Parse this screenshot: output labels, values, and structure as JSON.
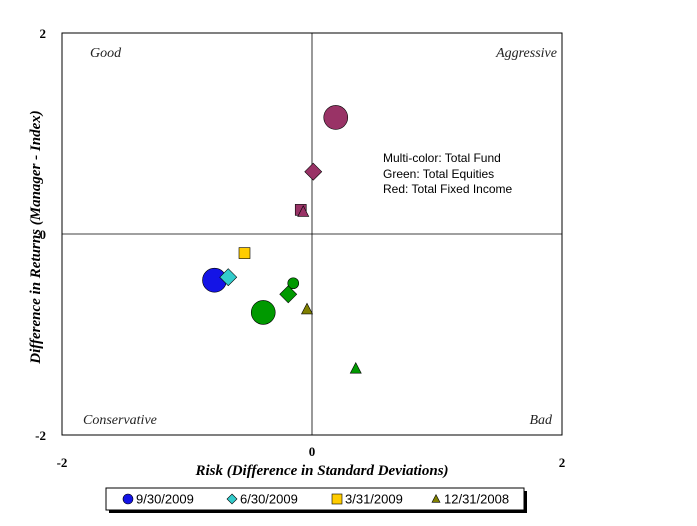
{
  "chart_data": {
    "type": "scatter",
    "xlabel": "Risk (Difference in Standard Deviations)",
    "ylabel": "Difference in Returns (Manager - Index)",
    "xlim": [
      -2,
      2
    ],
    "ylim": [
      -2,
      2
    ],
    "x_ticks": [
      "-2",
      "0",
      "2"
    ],
    "y_ticks": [
      "2",
      "0",
      "-2"
    ],
    "quadrant_labels": {
      "top_left": "Good",
      "top_right": "Aggressive",
      "bottom_left": "Conservative",
      "bottom_right": "Bad"
    },
    "annotations": [
      "Multi-color: Total Fund",
      "Green: Total Equities",
      "Red: Total Fixed Income"
    ],
    "legend_placement": "bottom",
    "grid": false,
    "series": [
      {
        "name": "9/30/2009",
        "marker": "circle"
      },
      {
        "name": "6/30/2009",
        "marker": "diamond"
      },
      {
        "name": "3/31/2009",
        "marker": "square"
      },
      {
        "name": "12/31/2008",
        "marker": "triangle"
      }
    ],
    "points": [
      {
        "group": "Total Fund",
        "series": "9/30/2009",
        "x": -0.78,
        "y": -0.46,
        "color": "#1414e6",
        "size": "large"
      },
      {
        "group": "Total Fund",
        "series": "6/30/2009",
        "x": -0.67,
        "y": -0.43,
        "color": "#33cccc",
        "size": "medium"
      },
      {
        "group": "Total Fund",
        "series": "3/31/2009",
        "x": -0.54,
        "y": -0.19,
        "color": "#ffcc00",
        "size": "small"
      },
      {
        "group": "Total Fund",
        "series": "12/31/2008",
        "x": -0.04,
        "y": -0.75,
        "color": "#808000",
        "size": "small"
      },
      {
        "group": "Total Equities",
        "series": "9/30/2009",
        "x": -0.39,
        "y": -0.78,
        "color": "#009900",
        "size": "large"
      },
      {
        "group": "Total Equities",
        "series": "9/30/2009",
        "x": -0.15,
        "y": -0.49,
        "color": "#009900",
        "size": "small"
      },
      {
        "group": "Total Equities",
        "series": "6/30/2009",
        "x": -0.19,
        "y": -0.6,
        "color": "#009900",
        "size": "medium"
      },
      {
        "group": "Total Equities",
        "series": "12/31/2008",
        "x": 0.35,
        "y": -1.34,
        "color": "#009900",
        "size": "small"
      },
      {
        "group": "Total Fixed Income",
        "series": "9/30/2009",
        "x": 0.19,
        "y": 1.16,
        "color": "#993366",
        "size": "large"
      },
      {
        "group": "Total Fixed Income",
        "series": "6/30/2009",
        "x": 0.01,
        "y": 0.62,
        "color": "#993366",
        "size": "medium"
      },
      {
        "group": "Total Fixed Income",
        "series": "3/31/2009",
        "x": -0.09,
        "y": 0.24,
        "color": "#993366",
        "size": "small"
      },
      {
        "group": "Total Fixed Income",
        "series": "12/31/2008",
        "x": -0.07,
        "y": 0.22,
        "color": "#993366",
        "size": "small"
      }
    ],
    "legend_colors": {
      "9/30/2009": "#1414e6",
      "6/30/2009": "#33cccc",
      "3/31/2009": "#ffcc00",
      "12/31/2008": "#808000"
    }
  }
}
